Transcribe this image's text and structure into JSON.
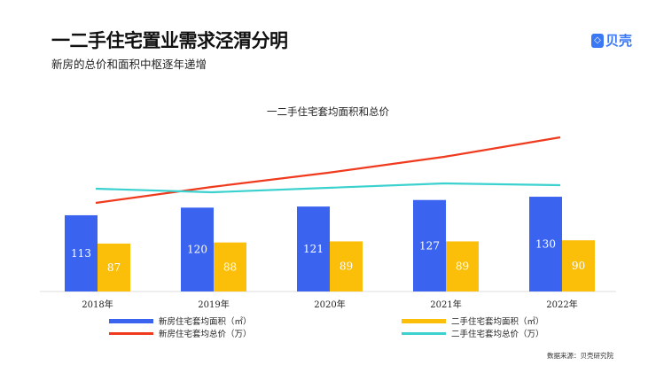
{
  "header": {
    "title": "一二手住宅置业需求泾渭分明",
    "subtitle": "新房的总价和面积中枢逐年递增",
    "logo": "贝壳"
  },
  "source": "数据来源：贝壳研究院",
  "chart_data": {
    "type": "bar",
    "title": "一二手住宅套均面积和总价",
    "categories": [
      "2018年",
      "2019年",
      "2020年",
      "2021年",
      "2022年"
    ],
    "ylim": [
      43,
      213
    ],
    "y2lim": [
      0,
      209
    ],
    "series": [
      {
        "name": "新房住宅套均面积（㎡）",
        "type": "bar",
        "color": "#3a63f0",
        "values": [
          113,
          120,
          121,
          127,
          130
        ]
      },
      {
        "name": "二手住宅套均面积（㎡）",
        "type": "bar",
        "color": "#fbbf0a",
        "values": [
          87,
          88,
          89,
          89,
          90
        ]
      },
      {
        "name": "新房住宅套均总价（万）",
        "type": "line",
        "axis": "secondary",
        "color": "#f03a1e",
        "values": [
          100,
          118,
          134,
          152,
          174
        ]
      },
      {
        "name": "二手住宅套均总价（万）",
        "type": "line",
        "axis": "secondary",
        "color": "#3ad1cf",
        "values": [
          116,
          112,
          117,
          122,
          120
        ]
      }
    ],
    "legend": "bottom"
  }
}
